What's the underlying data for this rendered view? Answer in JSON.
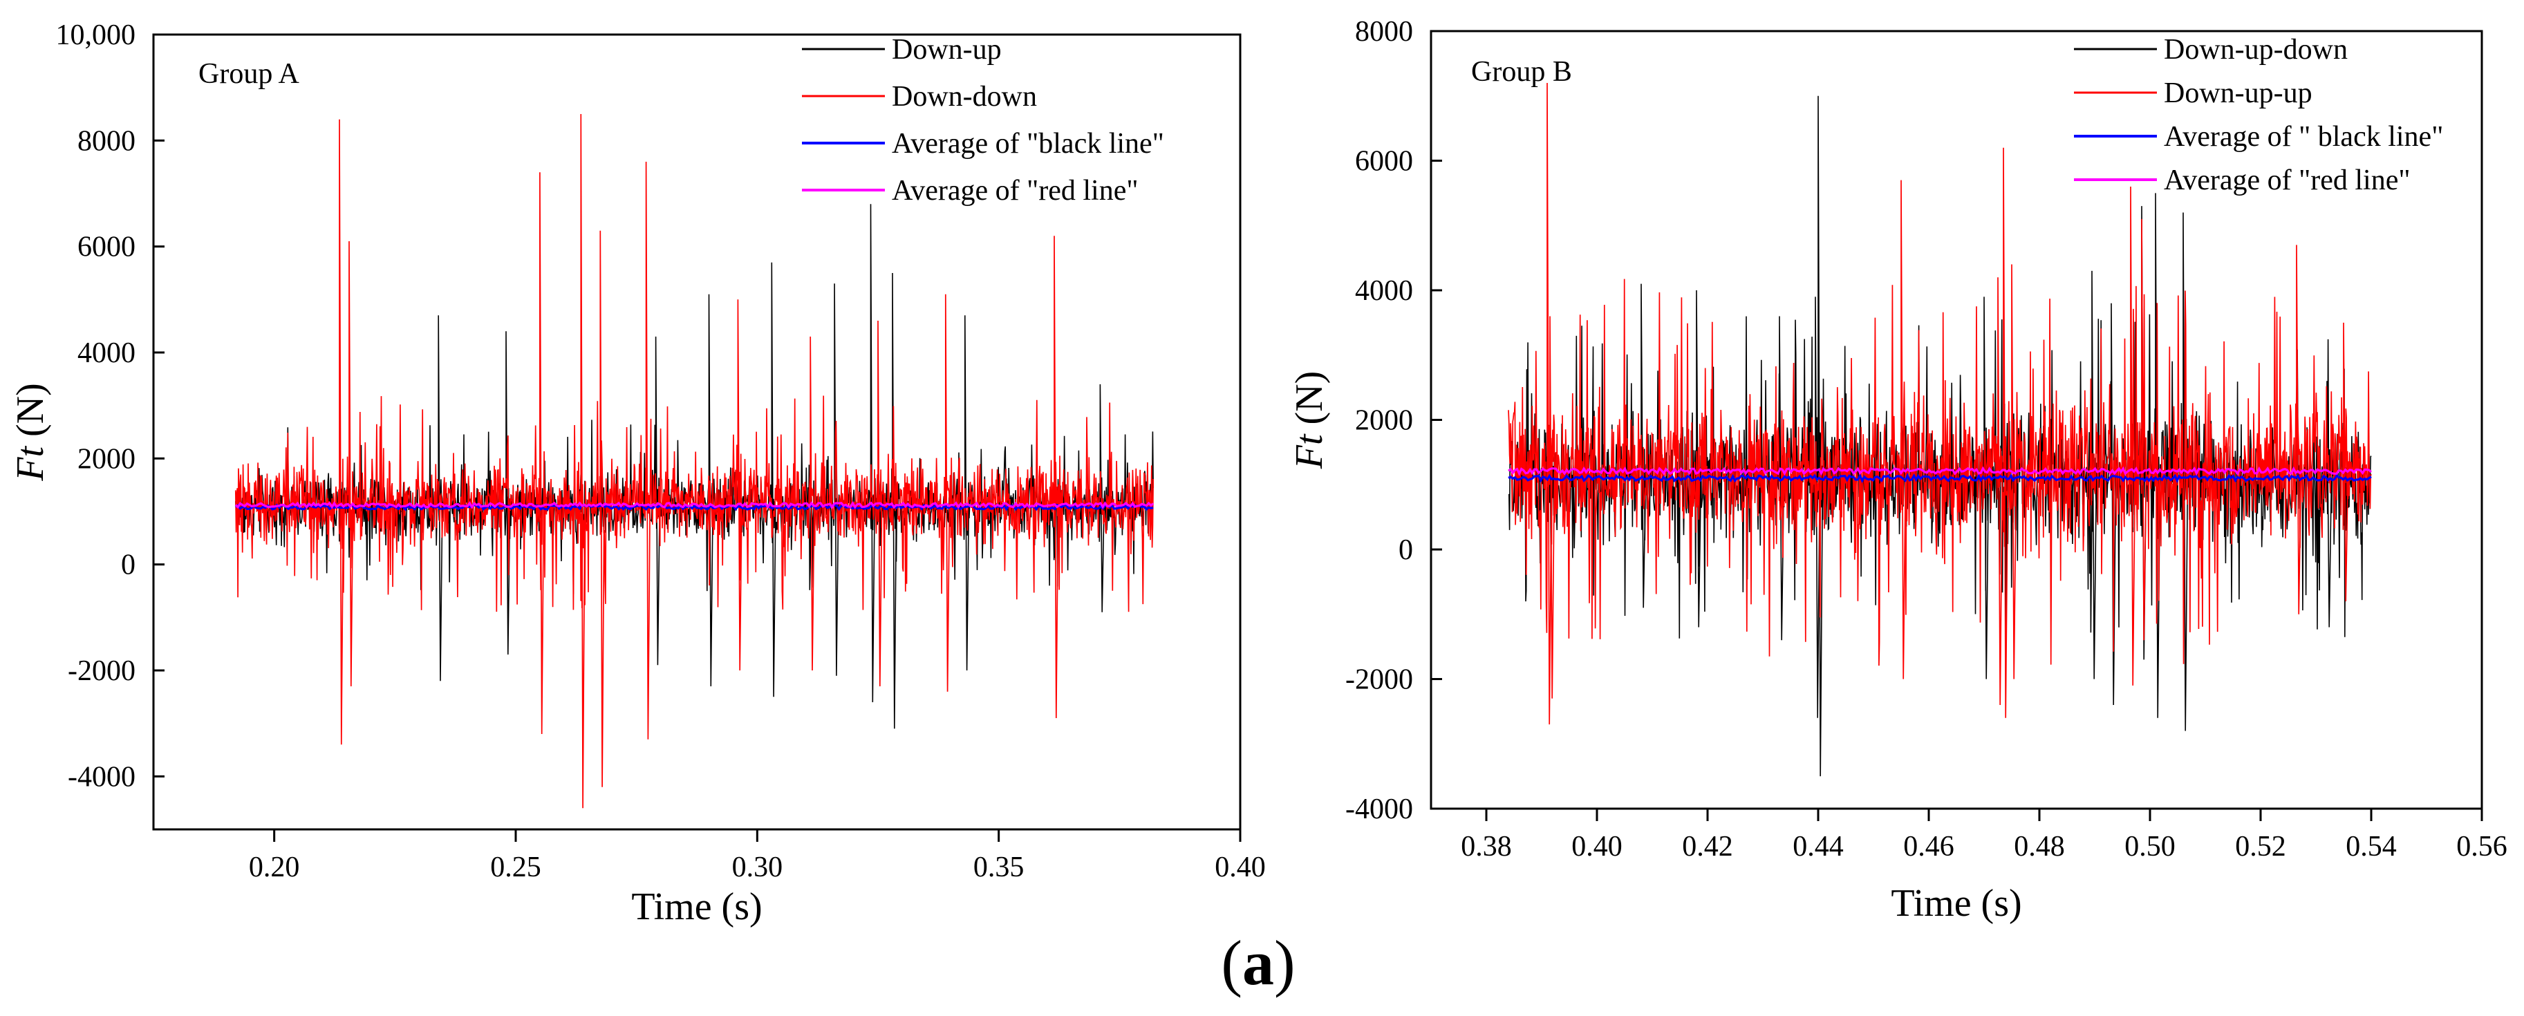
{
  "figure": {
    "caption_open": "(",
    "caption_letter": "a",
    "caption_close": ")"
  },
  "chart_data": [
    {
      "type": "line",
      "title": "",
      "panel_label": "Group A",
      "xlabel": "Time (s)",
      "ylabel_var": "Ft",
      "ylabel_unit": " (N)",
      "xlim": [
        0.175,
        0.4
      ],
      "ylim": [
        -5000,
        10000
      ],
      "xticks": [
        0.2,
        0.25,
        0.3,
        0.35,
        0.4
      ],
      "xtick_labels": [
        "0.20",
        "0.25",
        "0.30",
        "0.35",
        "0.40"
      ],
      "yticks": [
        -4000,
        -2000,
        0,
        2000,
        4000,
        6000,
        8000,
        10000
      ],
      "ytick_labels": [
        "-4000",
        "-2000",
        "0",
        "2000",
        "4000",
        "6000",
        "8000",
        "10,000"
      ],
      "grid": false,
      "legend_position": "top-right",
      "x_range_data": [
        0.192,
        0.382
      ],
      "series": [
        {
          "name": "Down-up",
          "color": "#000000",
          "kind": "noise",
          "mean": 1100,
          "spread": 520,
          "spikes": [
            [
              0.234,
              4700,
              -2200
            ],
            [
              0.248,
              4400,
              -1700
            ],
            [
              0.279,
              4300,
              -1900
            ],
            [
              0.29,
              5100,
              -2300
            ],
            [
              0.303,
              5700,
              -2500
            ],
            [
              0.316,
              5300,
              -2100
            ],
            [
              0.3235,
              6800,
              -2600
            ],
            [
              0.328,
              5500,
              -3100
            ],
            [
              0.343,
              4700,
              -2000
            ],
            [
              0.371,
              3400,
              -900
            ]
          ]
        },
        {
          "name": "Down-down",
          "color": "#ff0000",
          "kind": "noise",
          "mean": 1150,
          "spread": 650,
          "spikes": [
            [
              0.2135,
              8400,
              -3400
            ],
            [
              0.2155,
              6100,
              -2300
            ],
            [
              0.255,
              7400,
              -3200
            ],
            [
              0.2635,
              8500,
              -4600
            ],
            [
              0.2675,
              6300,
              -4200
            ],
            [
              0.277,
              7600,
              -3300
            ],
            [
              0.296,
              5000,
              -2000
            ],
            [
              0.311,
              4300,
              -2000
            ],
            [
              0.325,
              4600,
              -2300
            ],
            [
              0.339,
              5100,
              -2400
            ],
            [
              0.3615,
              6200,
              -2900
            ]
          ]
        },
        {
          "name": "Average of \"black line\"",
          "color": "#0000ff",
          "kind": "avg",
          "mean": 1080
        },
        {
          "name": "Average of \"red line\"",
          "color": "#ff00ff",
          "kind": "avg",
          "mean": 1120
        }
      ]
    },
    {
      "type": "line",
      "title": "",
      "panel_label": "Group B",
      "xlabel": "Time (s)",
      "ylabel_var": "Ft",
      "ylabel_unit": " (N)",
      "xlim": [
        0.37,
        0.56
      ],
      "ylim": [
        -4000,
        8000
      ],
      "xticks": [
        0.38,
        0.4,
        0.42,
        0.44,
        0.46,
        0.48,
        0.5,
        0.52,
        0.54,
        0.56
      ],
      "xtick_labels": [
        "0.38",
        "0.40",
        "0.42",
        "0.44",
        "0.46",
        "0.48",
        "0.50",
        "0.52",
        "0.54",
        "0.56"
      ],
      "yticks": [
        -4000,
        -2000,
        0,
        2000,
        4000,
        6000,
        8000
      ],
      "ytick_labels": [
        "-4000",
        "-2000",
        "0",
        "2000",
        "4000",
        "6000",
        "8000"
      ],
      "grid": false,
      "legend_position": "top-right",
      "x_range_data": [
        0.384,
        0.54
      ],
      "series": [
        {
          "name": "Down-up-down",
          "color": "#000000",
          "kind": "noise",
          "mean": 1100,
          "spread": 800,
          "spikes": [
            [
              0.408,
              4100,
              -900
            ],
            [
              0.418,
              4000,
              -1200
            ],
            [
              0.433,
              3600,
              -1400
            ],
            [
              0.4395,
              3900,
              -2600
            ],
            [
              0.44,
              7000,
              -3500
            ],
            [
              0.47,
              3900,
              -2000
            ],
            [
              0.4895,
              4300,
              -2000
            ],
            [
              0.493,
              3800,
              -2400
            ],
            [
              0.4985,
              5300,
              -1700
            ],
            [
              0.501,
              5500,
              -2600
            ],
            [
              0.506,
              5200,
              -2800
            ],
            [
              0.532,
              2600,
              -1200
            ]
          ]
        },
        {
          "name": "Down-up-up",
          "color": "#ff0000",
          "kind": "noise",
          "mean": 1200,
          "spread": 950,
          "spikes": [
            [
              0.391,
              7200,
              -2700
            ],
            [
              0.3915,
              3600,
              -2300
            ],
            [
              0.455,
              5700,
              -2000
            ],
            [
              0.4735,
              6200,
              -2600
            ],
            [
              0.475,
              4400,
              -2000
            ],
            [
              0.4965,
              5600,
              -2100
            ],
            [
              0.4985,
              5100,
              -1400
            ],
            [
              0.5265,
              4700,
              -1000
            ],
            [
              0.535,
              3500,
              -800
            ],
            [
              0.4725,
              4200,
              -2400
            ]
          ]
        },
        {
          "name": "Average of \" black line\"",
          "color": "#0000ff",
          "kind": "avg",
          "mean": 1100
        },
        {
          "name": "Average of \"red line\"",
          "color": "#ff00ff",
          "kind": "avg",
          "mean": 1210
        }
      ]
    }
  ]
}
